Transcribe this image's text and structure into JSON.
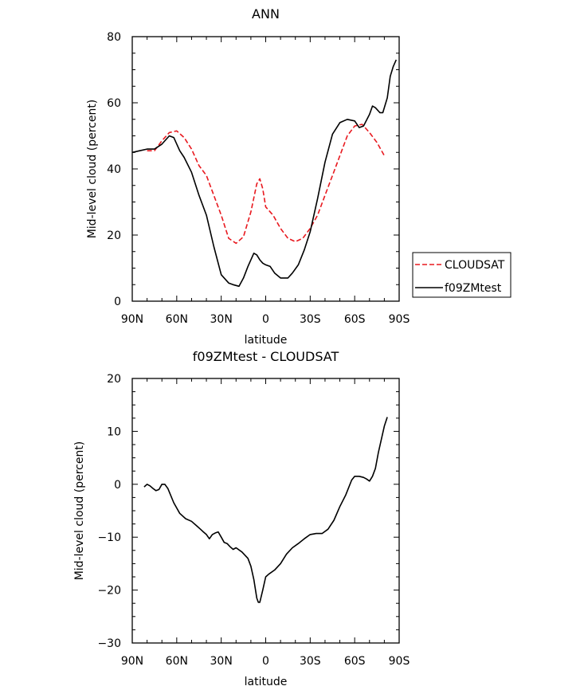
{
  "chart_data": [
    {
      "type": "line",
      "title": "ANN",
      "xlabel": "latitude",
      "ylabel": "Mid-level cloud (percent)",
      "xlim": [
        90,
        -90
      ],
      "ylim": [
        0,
        80
      ],
      "x_ticks": [
        {
          "value": 90,
          "label": "90N"
        },
        {
          "value": 60,
          "label": "60N"
        },
        {
          "value": 30,
          "label": "30N"
        },
        {
          "value": 0,
          "label": "0"
        },
        {
          "value": -30,
          "label": "30S"
        },
        {
          "value": -60,
          "label": "60S"
        },
        {
          "value": -90,
          "label": "90S"
        }
      ],
      "y_ticks": [
        {
          "value": 0,
          "label": "0"
        },
        {
          "value": 20,
          "label": "20"
        },
        {
          "value": 40,
          "label": "40"
        },
        {
          "value": 60,
          "label": "60"
        },
        {
          "value": 80,
          "label": "80"
        }
      ],
      "legend_position": "outside-right",
      "series": [
        {
          "name": "CLOUDSAT",
          "color": "#e8191f",
          "dash": "dashed",
          "x": [
            80,
            75,
            70,
            65,
            60,
            55,
            50,
            45,
            40,
            35,
            30,
            25,
            20,
            15,
            10,
            6,
            4,
            2,
            0,
            -5,
            -10,
            -15,
            -20,
            -25,
            -30,
            -35,
            -40,
            -45,
            -50,
            -55,
            -60,
            -65,
            -70,
            -75,
            -80
          ],
          "y": [
            45.5,
            45.5,
            48.5,
            51,
            51.5,
            49.5,
            46,
            41,
            38,
            32,
            26,
            19,
            17.5,
            19.5,
            27,
            35.5,
            37,
            34,
            28.5,
            26,
            22,
            19,
            18,
            19,
            22,
            26,
            32,
            38,
            44,
            50,
            53,
            53.5,
            51,
            48,
            44
          ]
        },
        {
          "name": "f09ZMtest",
          "color": "#000000",
          "dash": "solid",
          "x": [
            90,
            85,
            80,
            75,
            70,
            65,
            62,
            58,
            55,
            50,
            45,
            40,
            35,
            30,
            25,
            22,
            18,
            15,
            12,
            8,
            6,
            4,
            2,
            0,
            -3,
            -6,
            -10,
            -15,
            -18,
            -22,
            -26,
            -30,
            -35,
            -40,
            -45,
            -50,
            -55,
            -60,
            -63,
            -66,
            -70,
            -72,
            -74,
            -77,
            -79,
            -82,
            -84,
            -86,
            -88
          ],
          "y": [
            45,
            45.5,
            46,
            46,
            47.5,
            50,
            49.5,
            45.5,
            43.5,
            39,
            32,
            26,
            16.5,
            8,
            5.5,
            5,
            4.5,
            7,
            10.5,
            14.5,
            14,
            12.5,
            11.5,
            11,
            10.5,
            8.5,
            7,
            7,
            8.5,
            11,
            15.5,
            21,
            31,
            42,
            50.5,
            54,
            55,
            54.5,
            52.5,
            53,
            56.5,
            59,
            58.5,
            57,
            57,
            61.5,
            68,
            71,
            73
          ]
        }
      ]
    },
    {
      "type": "line",
      "title": "f09ZMtest - CLOUDSAT",
      "xlabel": "latitude",
      "ylabel": "Mid-level cloud (percent)",
      "xlim": [
        90,
        -90
      ],
      "ylim": [
        -30,
        20
      ],
      "x_ticks": [
        {
          "value": 90,
          "label": "90N"
        },
        {
          "value": 60,
          "label": "60N"
        },
        {
          "value": 30,
          "label": "30N"
        },
        {
          "value": 0,
          "label": "0"
        },
        {
          "value": -30,
          "label": "30S"
        },
        {
          "value": -60,
          "label": "60S"
        },
        {
          "value": -90,
          "label": "90S"
        }
      ],
      "y_ticks": [
        {
          "value": -30,
          "label": "−30"
        },
        {
          "value": -20,
          "label": "−20"
        },
        {
          "value": -10,
          "label": "−10"
        },
        {
          "value": 0,
          "label": "0"
        },
        {
          "value": 10,
          "label": "10"
        },
        {
          "value": 20,
          "label": "20"
        }
      ],
      "series": [
        {
          "color": "#000000",
          "dash": "solid",
          "x": [
            82,
            80,
            78,
            76,
            74,
            72,
            70,
            68,
            66,
            62,
            58,
            54,
            50,
            46,
            44,
            42,
            40,
            38,
            36,
            34,
            32,
            30,
            28,
            26,
            24,
            22,
            20,
            16,
            12,
            10,
            8,
            6,
            5,
            4,
            2,
            0,
            -2,
            -6,
            -10,
            -14,
            -18,
            -22,
            -26,
            -30,
            -34,
            -38,
            -42,
            -46,
            -50,
            -54,
            -58,
            -60,
            -63,
            -66,
            -68,
            -70,
            -72,
            -74,
            -76,
            -80,
            -82
          ],
          "y": [
            -0.5,
            0,
            -0.3,
            -0.8,
            -1.2,
            -1,
            0,
            0,
            -0.8,
            -3.5,
            -5.5,
            -6.5,
            -7,
            -8,
            -8.5,
            -9,
            -9.5,
            -10.3,
            -9.5,
            -9.2,
            -9,
            -10,
            -11,
            -11.2,
            -11.8,
            -12.3,
            -12,
            -12.8,
            -14,
            -15.5,
            -18,
            -21.5,
            -22.3,
            -22.3,
            -20,
            -17.5,
            -17,
            -16.2,
            -15,
            -13.2,
            -12,
            -11.2,
            -10.3,
            -9.5,
            -9.3,
            -9.3,
            -8.5,
            -6.8,
            -4.2,
            -2,
            0.8,
            1.5,
            1.5,
            1.3,
            1,
            0.6,
            1.5,
            3,
            6,
            11,
            12.7
          ]
        }
      ]
    }
  ]
}
